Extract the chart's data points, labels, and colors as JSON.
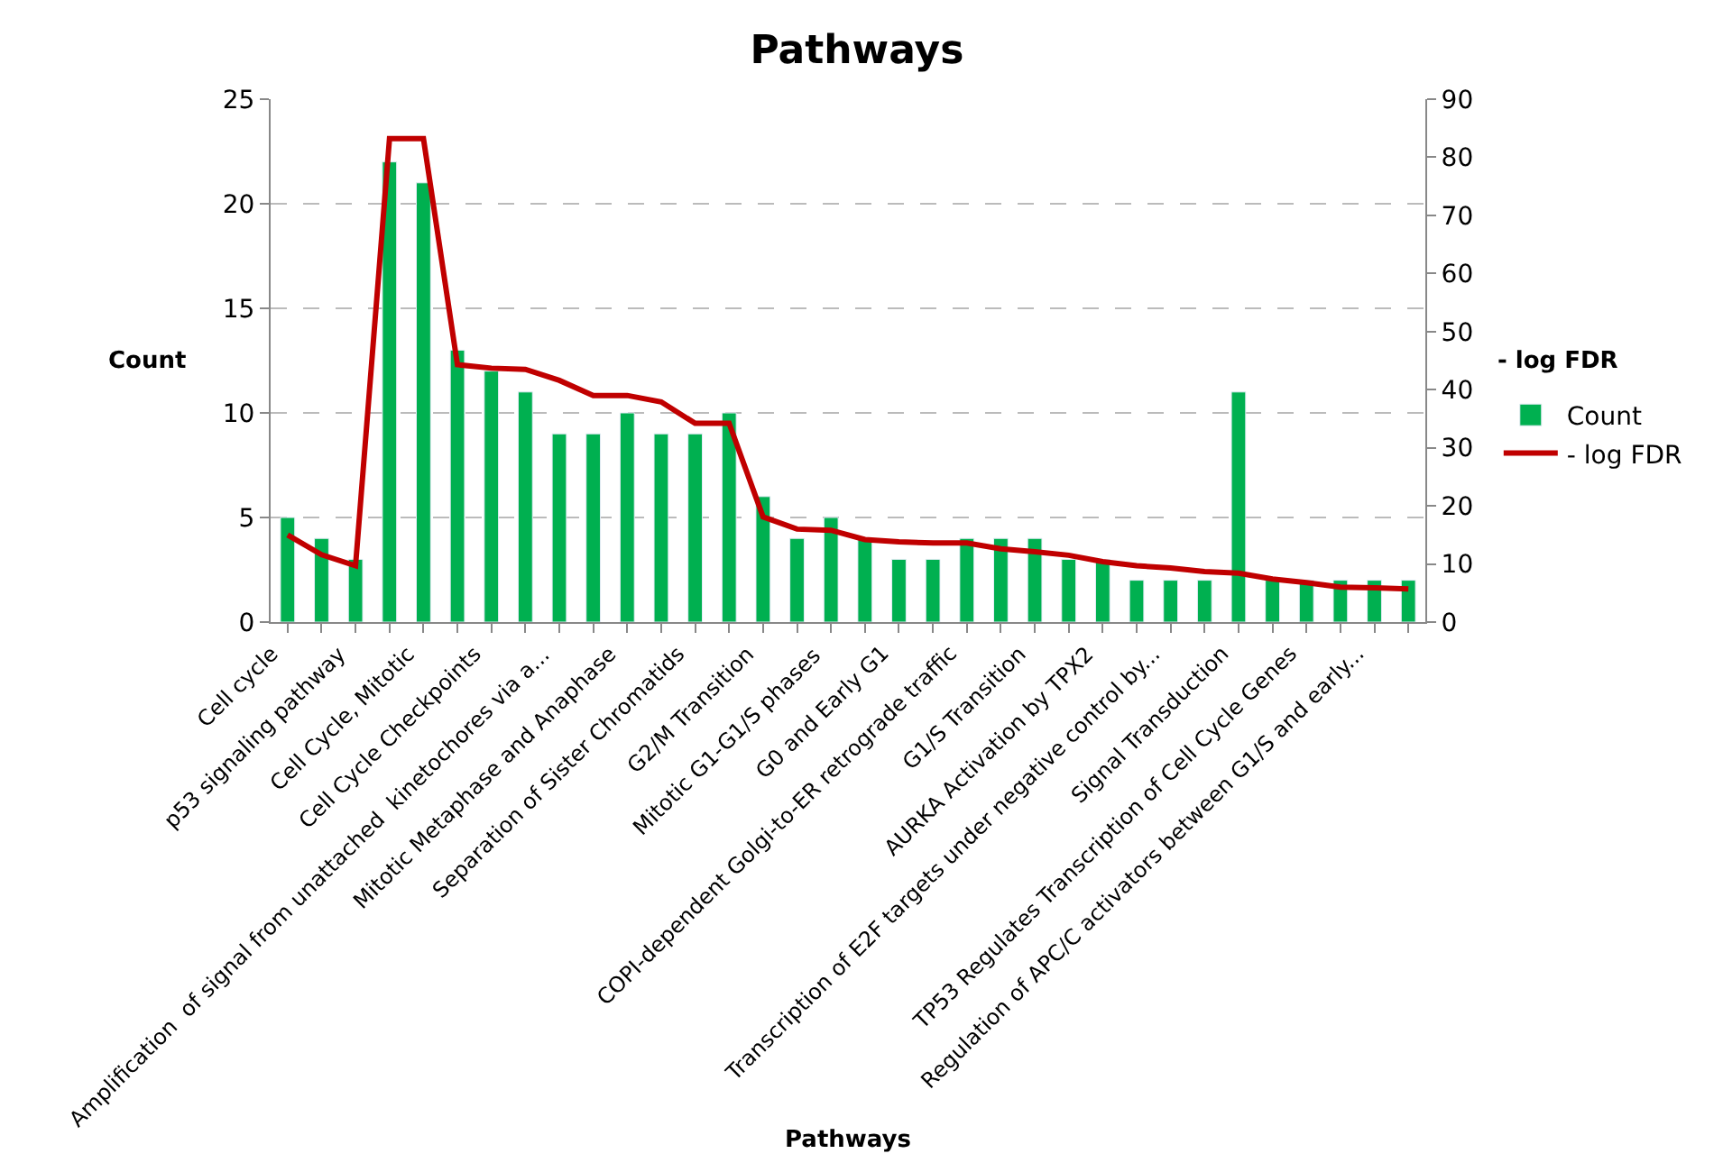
{
  "chart_data": {
    "type": "bar",
    "title": "Pathways",
    "xlabel": "Pathways",
    "ylabel": "Count",
    "y2label": "- log FDR",
    "categories": [
      "Cell cycle",
      null,
      "p53 signaling pathway",
      null,
      "Cell Cycle, Mitotic",
      null,
      "Cell Cycle Checkpoints",
      null,
      "Amplification  of signal from unattached  kinetochores via a...",
      null,
      "Mitotic Metaphase and Anaphase",
      null,
      "Separation of Sister Chromatids",
      null,
      "G2/M Transition",
      null,
      "Mitotic G1-G1/S phases",
      null,
      "G0 and Early G1",
      null,
      "COPI-dependent Golgi-to-ER retrograde traffic",
      null,
      "G1/S Transition",
      null,
      "AURKA Activation by TPX2",
      null,
      "Transcription of E2F targets under negative control by...",
      null,
      "Signal Transduction",
      null,
      "TP53 Regulates Transcription of Cell Cycle Genes",
      null,
      "Regulation of APC/C activators between G1/S and early...",
      null
    ],
    "series": [
      {
        "name": "Count",
        "color": "#00b050",
        "values": [
          5,
          4,
          3,
          22,
          21,
          13,
          12,
          11,
          9,
          9,
          10,
          9,
          9,
          10,
          6,
          4,
          5,
          4,
          3,
          3,
          4,
          4,
          4,
          3,
          3,
          2,
          2,
          2,
          11,
          2,
          2,
          2,
          2,
          2
        ]
      },
      {
        "name": "- log FDR",
        "type": "line",
        "axis": "y2",
        "color": "#c00000",
        "values": [
          15.0,
          11.6,
          9.7,
          83.2,
          83.2,
          44.3,
          43.7,
          43.5,
          41.6,
          39.0,
          39.0,
          37.9,
          34.2,
          34.2,
          18.1,
          16.0,
          15.8,
          14.2,
          13.8,
          13.6,
          13.6,
          12.6,
          12.1,
          11.5,
          10.4,
          9.7,
          9.3,
          8.7,
          8.4,
          7.4,
          6.8,
          6.0,
          5.9,
          5.7
        ]
      }
    ],
    "ylim": [
      0,
      25
    ],
    "yticks": [
      0,
      5,
      10,
      15,
      20,
      25
    ],
    "y2lim": [
      0,
      90
    ],
    "y2ticks": [
      0,
      10,
      20,
      30,
      40,
      50,
      60,
      70,
      80,
      90
    ],
    "grid": "y",
    "legend": "right",
    "marker": "none",
    "line_style": "solid"
  }
}
